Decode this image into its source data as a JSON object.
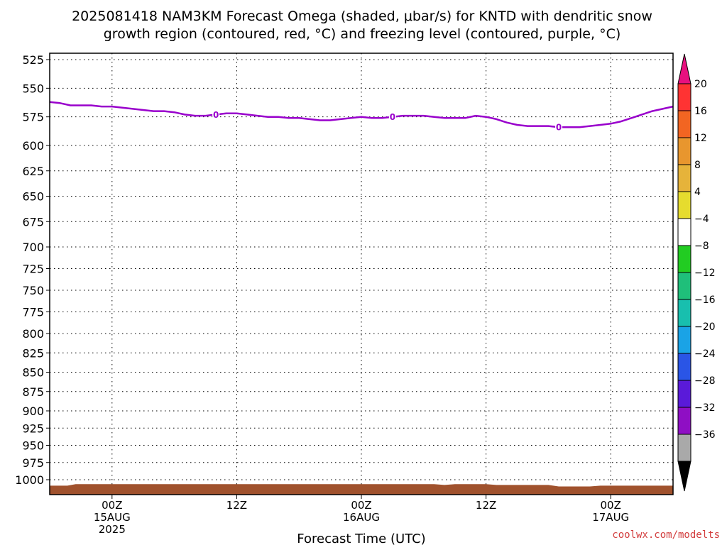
{
  "title": {
    "line1": "2025081418 NAM3KM Forecast Omega (shaded, μbar/s) for KNTD with dendritic snow",
    "line2": "growth region (contoured, red, °C) and freezing level (contoured, purple, °C)"
  },
  "credit": "coolwx.com/modelts",
  "chart_data": {
    "type": "line",
    "title": "2025081418 NAM3KM Forecast Omega (shaded, μbar/s) for KNTD with dendritic snow growth region (contoured, red, °C) and freezing level (contoured, purple, °C)",
    "xlabel": "Forecast Time (UTC)",
    "ylabel": "",
    "x_unit": "forecast hour from 2025-08-14 18Z",
    "xlim": [
      0,
      60
    ],
    "y_scale": "pressure (inverted, hPa)",
    "ylim": [
      1020,
      515
    ],
    "grid": true,
    "y_ticks": [
      "525",
      "550",
      "575",
      "600",
      "625",
      "650",
      "675",
      "700",
      "725",
      "750",
      "775",
      "800",
      "825",
      "850",
      "875",
      "900",
      "925",
      "950",
      "975",
      "1000"
    ],
    "x_ticks": [
      {
        "line1": "00Z",
        "line2": "15AUG",
        "line3": "2025",
        "hour": 6
      },
      {
        "line1": "12Z",
        "line2": "",
        "line3": "",
        "hour": 18
      },
      {
        "line1": "00Z",
        "line2": "16AUG",
        "line3": "",
        "hour": 30
      },
      {
        "line1": "12Z",
        "line2": "",
        "line3": "",
        "hour": 42
      },
      {
        "line1": "00Z",
        "line2": "17AUG",
        "line3": "",
        "hour": 54
      }
    ],
    "series": [
      {
        "label": "0",
        "color": "#9900cc",
        "x": [
          0,
          1,
          2,
          3,
          4,
          5,
          6,
          7,
          8,
          9,
          10,
          11,
          12,
          13,
          14,
          15,
          16,
          17,
          18,
          19,
          20,
          21,
          22,
          23,
          24,
          25,
          26,
          27,
          28,
          29,
          30,
          31,
          32,
          33,
          34,
          35,
          36,
          37,
          38,
          39,
          40,
          41,
          42,
          43,
          44,
          45,
          46,
          47,
          48,
          49,
          50,
          51,
          52,
          53,
          54,
          55,
          56,
          57,
          58,
          59,
          60
        ],
        "values": [
          562,
          563,
          565,
          565,
          565,
          566,
          566,
          567,
          568,
          569,
          570,
          570,
          571,
          573,
          574,
          574,
          573,
          572,
          572,
          573,
          574,
          575,
          575,
          576,
          576,
          577,
          578,
          578,
          577,
          576,
          575,
          576,
          576,
          575,
          574,
          574,
          574,
          575,
          576,
          576,
          576,
          574,
          575,
          577,
          580,
          582,
          583,
          583,
          583,
          584,
          584,
          584,
          583,
          582,
          581,
          579,
          576,
          573,
          570,
          568,
          566
        ],
        "contour_labels_at_hours": [
          16,
          33,
          49
        ]
      }
    ],
    "terrain": {
      "label": "surface",
      "color": "#a0522d",
      "x": [
        0,
        1.7,
        2.5,
        10,
        20,
        30,
        37,
        38,
        39,
        40,
        41,
        42,
        43,
        48,
        49,
        50,
        52,
        53,
        60
      ],
      "values": [
        1008,
        1008,
        1006,
        1006,
        1006,
        1006,
        1006,
        1007,
        1006,
        1006,
        1006,
        1006,
        1007,
        1007,
        1009,
        1009,
        1009,
        1008,
        1008
      ]
    },
    "colorbar": {
      "ticks": [
        "20",
        "16",
        "12",
        "8",
        "4",
        "−4",
        "−8",
        "−12",
        "−16",
        "−20",
        "−24",
        "−28",
        "−32",
        "−36"
      ],
      "colors": [
        "#ff3333",
        "#f26522",
        "#e8962e",
        "#e6b33a",
        "#e6dc2e",
        "#ffffff",
        "#22cc22",
        "#1fbf7a",
        "#18bfae",
        "#1aa3e6",
        "#2a55e6",
        "#5a1ad9",
        "#8f0fc4",
        "#a9a9a9"
      ],
      "top_arrow_color": "#e8107f",
      "bottom_arrow_color": "#000000"
    }
  }
}
